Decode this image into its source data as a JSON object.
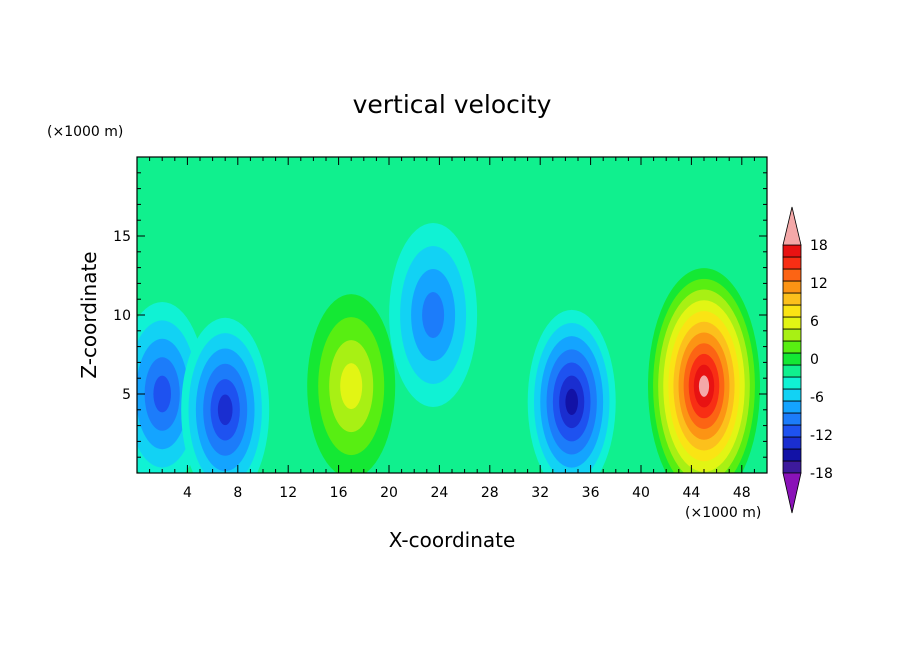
{
  "chart_data": {
    "type": "heatmap",
    "title": "vertical velocity",
    "xlabel": "X-coordinate",
    "ylabel": "Z-coordinate",
    "x_unit": "(×1000 m)",
    "y_unit": "(×1000 m)",
    "xlim": [
      0,
      50
    ],
    "ylim": [
      0,
      20
    ],
    "x_ticks": [
      4,
      8,
      12,
      16,
      20,
      24,
      28,
      32,
      36,
      40,
      44,
      48
    ],
    "y_ticks": [
      5,
      10,
      15
    ],
    "colorbar": {
      "levels": [
        -20,
        -18,
        -16,
        -14,
        -12,
        -10,
        -8,
        -6,
        -4,
        -2,
        0,
        2,
        4,
        6,
        8,
        10,
        12,
        14,
        16,
        18,
        20
      ],
      "labels": [
        "-18",
        "-12",
        "-6",
        "0",
        "6",
        "12",
        "18"
      ],
      "label_values": [
        -18,
        -12,
        -6,
        0,
        6,
        12,
        18
      ],
      "colors": [
        "#8a12b8",
        "#3d1a9c",
        "#1212a6",
        "#1a2ed0",
        "#1e52f0",
        "#1c7cfa",
        "#14a4ff",
        "#12d2f4",
        "#10f2d4",
        "#10f08e",
        "#14e834",
        "#58ee12",
        "#a8f014",
        "#e2f514",
        "#fae414",
        "#fcc01c",
        "#fc9414",
        "#fc6414",
        "#f82e14",
        "#e81212",
        "#f4a8a8"
      ],
      "under_color": "#8a12b8",
      "over_color": "#f4a8a8"
    },
    "features": [
      {
        "x": 2,
        "z": 5,
        "value": -11
      },
      {
        "x": 7,
        "z": 4,
        "value": -13
      },
      {
        "x": 17,
        "z": 5.5,
        "value": 6
      },
      {
        "x": 23.5,
        "z": 10,
        "value": -8
      },
      {
        "x": 34.5,
        "z": 4.5,
        "value": -15
      },
      {
        "x": 45,
        "z": 5.5,
        "value": 20
      }
    ]
  }
}
